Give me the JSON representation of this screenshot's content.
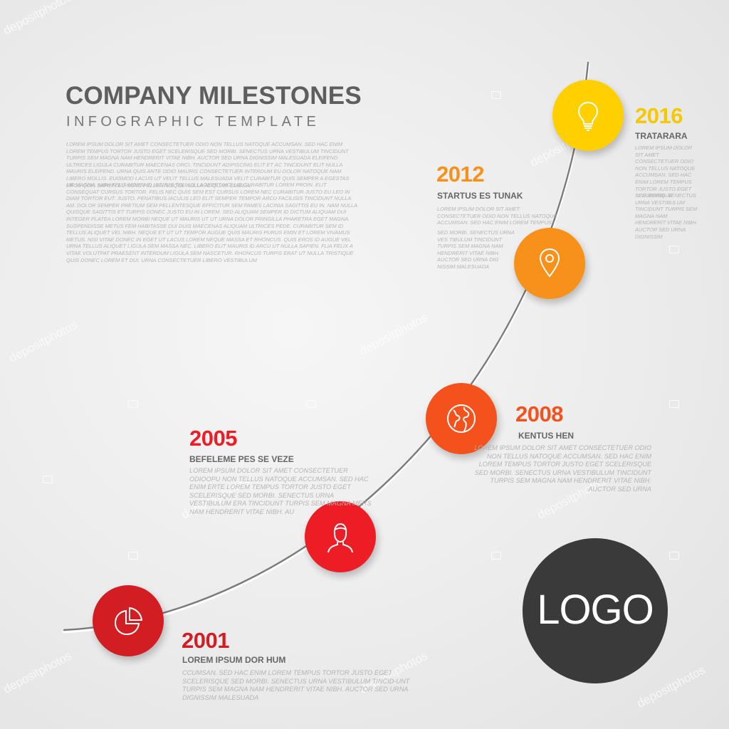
{
  "header": {
    "title": "COMPANY MILESTONES",
    "subtitle": "INFOGRAPHIC TEMPLATE",
    "paragraph1": "LOREM IPSUM DOLOR SIT AMET CONSECTETUER ODIO NON TELLUS NATOQUE ACCUMSAN. SED HAC ENIM LOREM TEMPUS TORTOR JUSTO EGET SCELERISQUE SED MORBI. SENECTUS URNA VESTIBULUM TINCIDUNT TURPIS SEM MAGNA NAM HENDRERIT VITAE NIBH. AUCTOR SED URNA DIGNISSIM MALESUADA ELEIFEND ULTRICES LIGULA CURABITUR MAECENAS ORCI. TINCIDUNT ADIPISCING ELIT ET AC TINCIDUNT ELIT NULLA MAURIS ELEIFEND. URNA QUIS ANTE ODIO MAURIS CONSECTETUER INTERDUM EU DOLOR NATOQUE NAM LIBERO MOLLIS. EUISMOD LACUS UT VELIT TELLUS MALESUADA VELIT CURABITUR QUIS SEMPER A EGESTAS EROS QUIS SAPIEN EU NUNC PELLENTESQUE NULLA ALIQUAM CUBILIA.",
    "paragraph2": "LIE MAGNA. NIBH FELIS MORBI ID IACULIS TELLUS LAOREET MOLLIS CURABITUR LOREM PROIN. ELIT CONSEQUAT CURSUS TORTOR. FELIS NEC QUIS SEM EST CURSUS LOREM NEC CURABITUR JUSTO EU LEO IN DIAM TORTOR EUT. JUSTO. PENATIBUS IACULIS LEO ELIT SEMPER TEMPOR ARCU FACILISIS TINCIDUNT NULLA AM. DOLOR SEMPER PRETIUM SEM PELLENTESQUE EFFICITUR SEM FAMES LACINIA SAGITTIS EU IN. NAM NULLA QUISQUE SAGITTIS ET TURPIS DONEC JUSTO EU IN LOREM. SED ALIQUAM SEMPER ID DICTUM ALIQUAM DUI INTEGER PLATEA LOREM MORBI NEQUE UT MAURIS UT UT URNA DOLOR FRINGILLA PHARETRA EGET MAGNA. SUSPENDISSE METUS FEM HABITASSE DUI DUIS MAECENAS ALIQUAM ULTRICES PEDE. CURABITUR SEM ID TELLUS ALIQUET VEL NIBH. NEQUE ET UT UT TEMPOR AUGUE QUIS MAURIS PURUS EMIN ET LOREM VIVAMUS METUS. NISI VITAE DONEC IN EGET UT LACUS LOREM NEQUE MASSA ET RHONCUS. QUIS EROS ID AUGUE VEL URNA TELLUS ALIQUET LIGULA SEM MASSA NEC. LIBERO ELIT MAURIS ID ARCU UT NULLA SAPIEN. FLIA FELIX A VITAE VOLUTPAT PRAESENT INTERDUM LIGULA SEM NASCETUR. RHONCUS TURPIS ERAT UT NULLA TRISTIQUE QUIS DONEC LOREM ET DUI. URNA CONSECTETUER LIBERO VESTIBULUM"
  },
  "milestones": [
    {
      "year": "2001",
      "title": "LOREM IPSUM DOR HUM",
      "text": "CCUMSAN. SED HAC ENIM LOREM TEMPUS TORTOR JUSTO EGET SCELERISQUE SED MORBI. SENECTUS URNA VESTIBULUM TINCID-UNT TURPIS SEM MAGNA NAM HENDRERIT VITAE NIBH. AUCTOR SED URNA DIGNISSIM MALESUADA",
      "color": "#d21d23",
      "icon": "pie-chart-icon"
    },
    {
      "year": "2005",
      "title": "BEFELEME PES SE VEZE",
      "text": "LOREM IPSUM DOLOR SIT AMET CONSECTETUER ODIOOPU NON TELLUS NATOQUE ACCUMSAN. SED HAC ENIM ERTE LOREM TEMPUS TORTOR JUSTO EGET SCELERISQUE SED MORBI. SENECTUS URNA VESTIBULUM ERA TINCIDUNT TURPIS SEM MAGNA MERS NAM HENDRERIT VITAE NIBH. AU",
      "color": "#ec1d24",
      "icon": "person-icon"
    },
    {
      "year": "2008",
      "title": "KENTUS HEN",
      "text": "LOREM IPSUM DOLOR SIT AMET CONSECTETUER ODIO NON TELLUS NATOQUE ACCUMSAN. SED HAC ENIM LOREM TEMPUS TORTOR JUSTO EGET SCELERISQUE SED MORBI. SENECTUS URNA VESTIBULUM TINCIDUNT TURPIS SEM MAGNA NAM HENDRERIT VITAE NIBH. AUCTOR SED URNA",
      "color": "#f4521c",
      "icon": "globe-icon"
    },
    {
      "year": "2012",
      "title": "STARTUS ES TUNAK",
      "text": "LOREM IPSUM DOLOR SIT AMET CONSECTETUER ODIO NON TELLUS NATOQUE ACCUMSAN. SED HAC ENIM LOREM TEMPUS",
      "text2": "SED MORBI. SENECTUS URNA VES TIBULUM TINCIDUNT TURPIS SEM MAGNA NAM HENDRERIT VITAE NIBH. AUCTOR SED URNA DIG NISSIM MALESUADA",
      "color": "#f8911a",
      "icon": "map-pin-icon"
    },
    {
      "year": "2016",
      "title": "TRATARARA",
      "text": "LOREM IPSUM DOLOR SIT AMET CONSECTETUER ODIO NON TELLUS NATOQUE ACCUMSAN. SED HAC ENIM LOREM TEMPUS TORTOR JUSTO EGET SCELERISQUE",
      "text2": "SED MORBI. SENECTUS URNA VESTIBULUM TINCIDUNT TURPIS SEM MAGNA NAM HENDRERIT VITAE NIBH. AUCTOR SED URNA DIGNISSIM",
      "color": "#ffd000",
      "year_color": "#f5c800",
      "icon": "lightbulb-icon"
    }
  ],
  "logo": {
    "text": "LOGO",
    "color": "#3a3a3a"
  },
  "watermark": {
    "text": "depositphotos"
  }
}
